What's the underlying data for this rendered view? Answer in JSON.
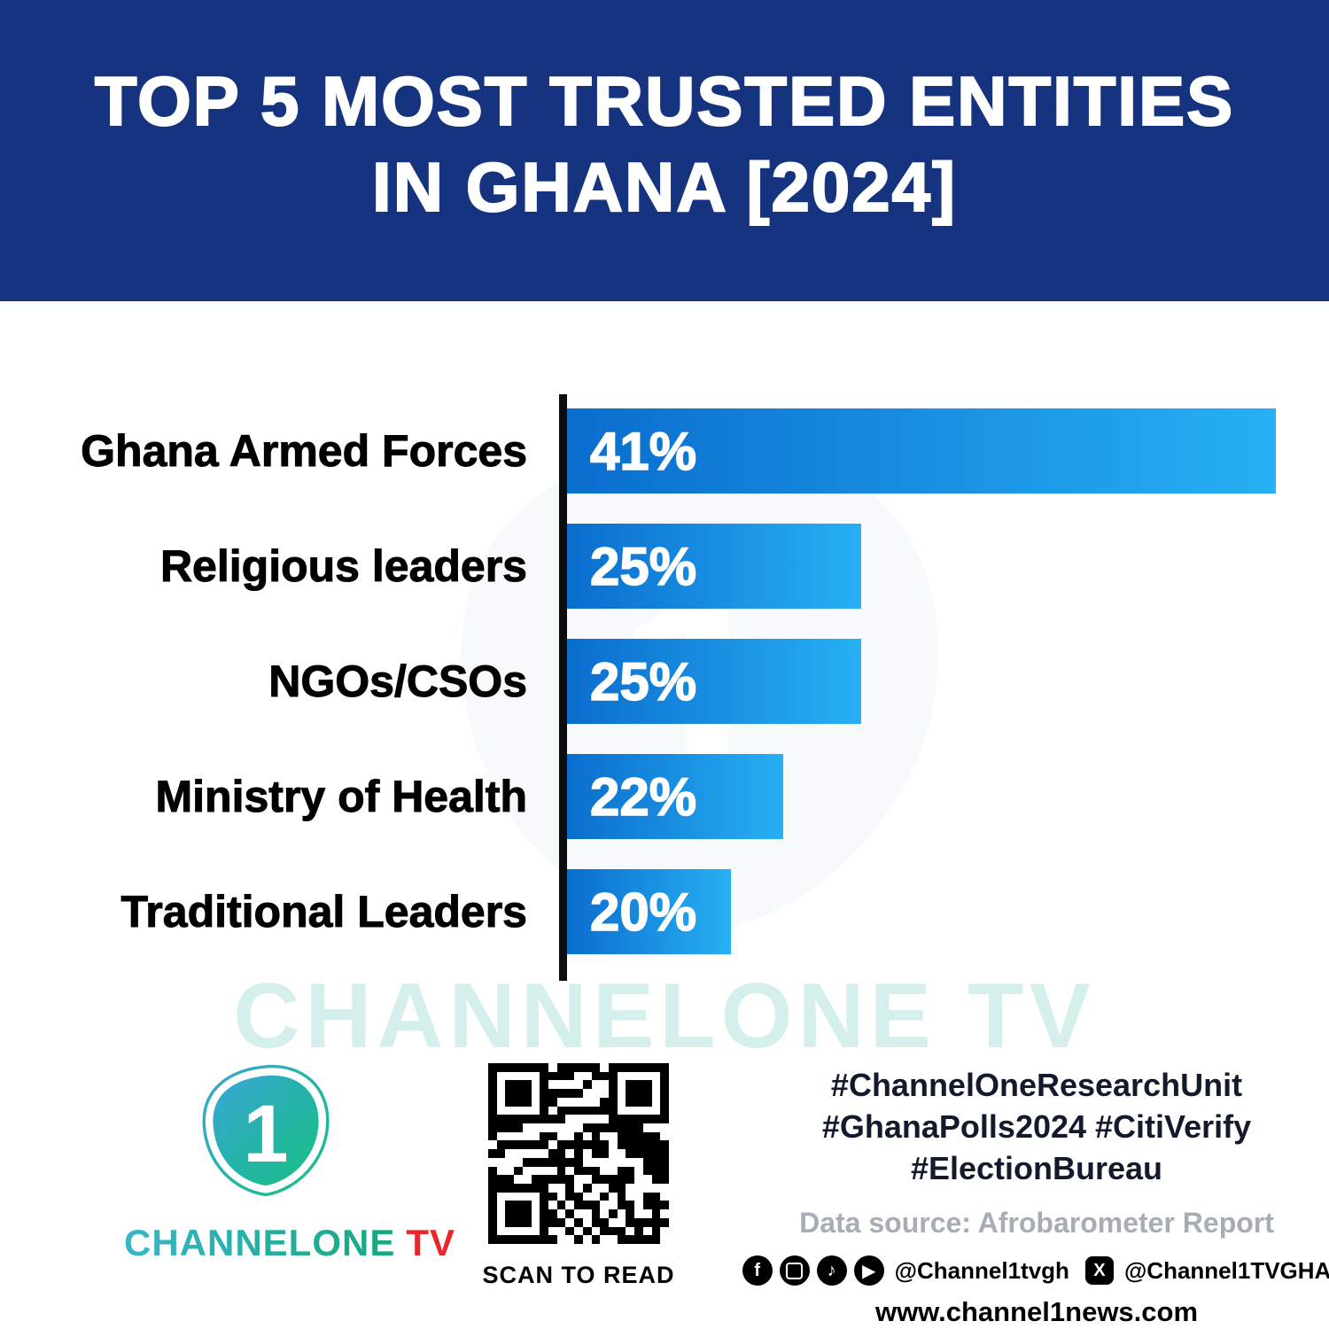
{
  "header": {
    "title_line1": "TOP 5 MOST TRUSTED ENTITIES",
    "title_line2": "IN GHANA [2024]"
  },
  "chart_data": {
    "type": "bar",
    "orientation": "horizontal",
    "title": "Top 5 Most Trusted Entities in Ghana [2024]",
    "categories": [
      "Ghana Armed Forces",
      "Religious leaders",
      "NGOs/CSOs",
      "Ministry of Health",
      "Traditional Leaders"
    ],
    "values": [
      41,
      25,
      25,
      22,
      20
    ],
    "value_labels": [
      "41%",
      "25%",
      "25%",
      "22%",
      "20%"
    ],
    "value_suffix": "%",
    "xlabel": "",
    "ylabel": "",
    "legend": "none",
    "grid": false,
    "not_to_scale": true,
    "bar_color_start": "#0a6dce",
    "bar_color_end": "#27b0f3",
    "axis_color": "#000000"
  },
  "watermark": {
    "text": "CHANNELONE TV"
  },
  "footer": {
    "logo": {
      "numeral": "1",
      "brand_name": "CHANNELONE",
      "brand_tv": "TV"
    },
    "qr_caption": "SCAN TO READ",
    "hashtags_line1": "#ChannelOneResearchUnit",
    "hashtags_line2": "#GhanaPolls2024 #CitiVerify",
    "hashtags_line3": "#ElectionBureau",
    "data_source": "Data source: Afrobarometer Report",
    "social": {
      "icons": [
        "facebook-icon",
        "instagram-icon",
        "tiktok-icon",
        "youtube-icon"
      ],
      "handle_1": "@Channel1tvgh",
      "x_icon": "x-icon",
      "handle_2": "@Channel1TVGHA"
    },
    "website": "www.channel1news.com"
  },
  "colors": {
    "header_bg": "#16337f",
    "bar_gradient_start": "#0a6dce",
    "bar_gradient_end": "#27b0f3",
    "brand_teal": "#1fb39a",
    "brand_red": "#e8262c",
    "source_gray": "#a7adb5",
    "watermark_teal": "#8fd6cf"
  }
}
